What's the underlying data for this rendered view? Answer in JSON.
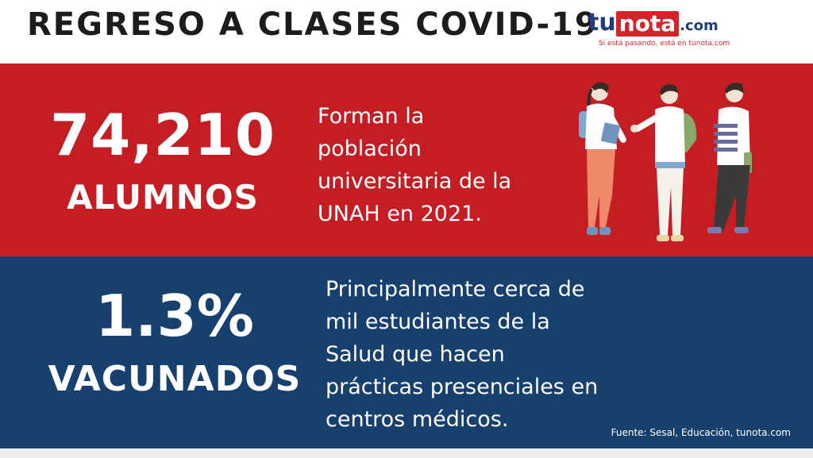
{
  "header": {
    "title": "REGRESO A CLASES COVID-19",
    "logo": {
      "tu": "tu",
      "nota": "nota",
      "com": ".com",
      "tagline": "Si está pasando, está en tunota.com",
      "colors": {
        "blue": "#1f3f7a",
        "red": "#d4242a"
      }
    }
  },
  "stat_students": {
    "number": "74,210",
    "label": "ALUMNOS",
    "description_lines": [
      "Forman la",
      "población",
      "universitaria de la",
      "UNAH  en 2021."
    ],
    "background": "#c41e24"
  },
  "stat_vaccinated": {
    "number": "1.3%",
    "label": "VACUNADOS",
    "description_lines": [
      "Principalmente cerca de",
      "mil estudiantes de la",
      "Salud que hacen",
      "prácticas presenciales en",
      "centros médicos."
    ],
    "background": "#18406e"
  },
  "source": "Fuente: Sesal, Educación, tunota.com",
  "illustration": {
    "icon": "students-walking-icon"
  }
}
